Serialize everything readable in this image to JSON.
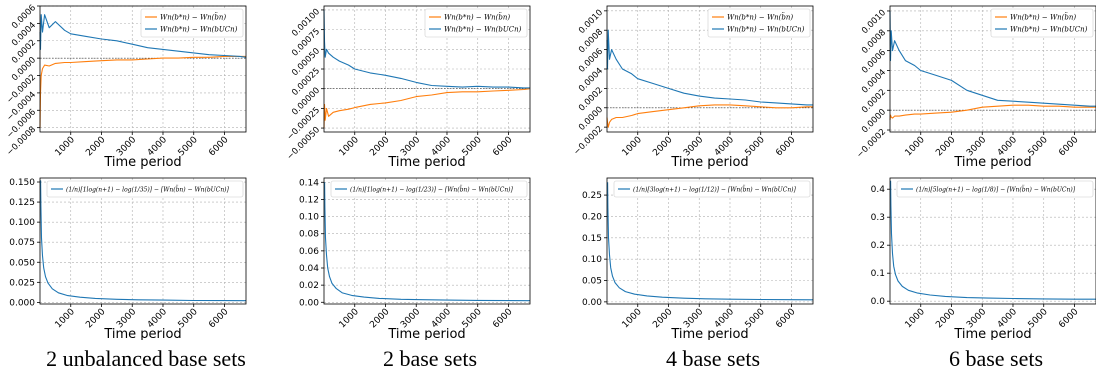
{
  "captions": [
    "2 unbalanced base sets",
    "2 base sets",
    "4 base sets",
    "6 base sets"
  ],
  "colors": {
    "orange": "#ff7f0e",
    "blue": "#1f77b4",
    "grid": "#b0b0b0"
  },
  "chart_data": [
    {
      "type": "line",
      "panel": "top",
      "set": 0,
      "xlabel": "Time period",
      "xlim": [
        0,
        6700
      ],
      "xticks": [
        1000,
        2000,
        3000,
        4000,
        5000,
        6000
      ],
      "ylim": [
        -0.00085,
        0.0006
      ],
      "yticks": [
        -0.0008,
        -0.0006,
        -0.0004,
        -0.0002,
        0.0,
        0.0002,
        0.0004,
        0.0006
      ],
      "ytick_labels": [
        "−0.0008",
        "−0.0006",
        "−0.0004",
        "−0.0002",
        "0.0000",
        "0.0002",
        "0.0004",
        "0.0006"
      ],
      "grid": true,
      "legend": "top-right",
      "hline": 0,
      "series": [
        {
          "name": "Wn(b*n) − Wn(b̈n)",
          "color": "orange",
          "x": [
            1,
            15,
            40,
            80,
            150,
            300,
            500,
            800,
            1000,
            1500,
            2000,
            2500,
            3000,
            3500,
            4000,
            4500,
            5000,
            5500,
            6000,
            6500,
            6700
          ],
          "y": [
            -0.0008,
            -0.0004,
            -0.0002,
            -0.00012,
            -8e-05,
            -9e-05,
            -6e-05,
            -5e-05,
            -5e-05,
            -4e-05,
            -3e-05,
            -2e-05,
            -2e-05,
            -1e-05,
            0.0,
            0.0,
            1e-05,
            1e-05,
            2e-05,
            2e-05,
            2e-05
          ]
        },
        {
          "name": "Wn(b*n) − Wn(bUCn)",
          "color": "blue",
          "x": [
            1,
            15,
            40,
            80,
            150,
            300,
            500,
            800,
            1000,
            1500,
            2000,
            2500,
            3000,
            3500,
            4000,
            4500,
            5000,
            5500,
            6000,
            6500,
            6700
          ],
          "y": [
            0.0003,
            0.0001,
            0.0005,
            0.0003,
            0.0005,
            0.00035,
            0.00042,
            0.00032,
            0.00028,
            0.00025,
            0.00022,
            0.0002,
            0.00016,
            0.00012,
            0.0001,
            8e-05,
            6e-05,
            4e-05,
            3e-05,
            2e-05,
            1e-05
          ]
        }
      ]
    },
    {
      "type": "line",
      "panel": "top",
      "set": 1,
      "xlabel": "Time period",
      "xlim": [
        0,
        6700
      ],
      "xticks": [
        1000,
        2000,
        3000,
        4000,
        5000,
        6000
      ],
      "ylim": [
        -0.00055,
        0.00105
      ],
      "yticks": [
        -0.0005,
        -0.00025,
        0.0,
        0.00025,
        0.0005,
        0.00075,
        0.001
      ],
      "ytick_labels": [
        "−0.00050",
        "−0.00025",
        "0.00000",
        "0.00025",
        "0.00050",
        "0.00075",
        "0.00100"
      ],
      "grid": true,
      "legend": "top-right",
      "hline": 0,
      "series": [
        {
          "name": "Wn(b*n) − Wn(b̈n)",
          "color": "orange",
          "x": [
            1,
            15,
            40,
            80,
            150,
            300,
            500,
            800,
            1000,
            1500,
            2000,
            2500,
            3000,
            3500,
            4000,
            4500,
            5000,
            5500,
            6000,
            6500,
            6700
          ],
          "y": [
            -0.0005,
            -0.0002,
            -0.0004,
            -0.00025,
            -0.00035,
            -0.0003,
            -0.00028,
            -0.00026,
            -0.00024,
            -0.0002,
            -0.00018,
            -0.00015,
            -0.0001,
            -8e-05,
            -5e-05,
            -4e-05,
            -4e-05,
            -3e-05,
            -2e-05,
            -1e-05,
            0.0
          ]
        },
        {
          "name": "Wn(b*n) − Wn(bUCn)",
          "color": "blue",
          "x": [
            1,
            15,
            40,
            80,
            150,
            300,
            500,
            800,
            1000,
            1500,
            2000,
            2500,
            3000,
            3500,
            4000,
            4500,
            5000,
            5500,
            6000,
            6500,
            6700
          ],
          "y": [
            0.001,
            0.0006,
            0.0004,
            0.0005,
            0.00045,
            0.0004,
            0.00035,
            0.0003,
            0.00025,
            0.0002,
            0.00017,
            0.00013,
            8e-05,
            4e-05,
            3e-05,
            2e-05,
            3e-05,
            2e-05,
            2e-05,
            1e-05,
            1e-05
          ]
        }
      ]
    },
    {
      "type": "line",
      "panel": "top",
      "set": 2,
      "xlabel": "Time period",
      "xlim": [
        0,
        6700
      ],
      "xticks": [
        1000,
        2000,
        3000,
        4000,
        5000,
        6000
      ],
      "ylim": [
        -0.00025,
        0.00105
      ],
      "yticks": [
        -0.0002,
        0.0,
        0.0002,
        0.0004,
        0.0006,
        0.0008,
        0.001
      ],
      "ytick_labels": [
        "−0.0002",
        "0.0000",
        "0.0002",
        "0.0004",
        "0.0006",
        "0.0008",
        "0.0010"
      ],
      "grid": true,
      "legend": "top-right",
      "hline": 0,
      "series": [
        {
          "name": "Wn(b*n) − Wn(b̈n)",
          "color": "orange",
          "x": [
            1,
            15,
            40,
            80,
            150,
            300,
            500,
            800,
            1000,
            1500,
            2000,
            2500,
            3000,
            3500,
            4000,
            4500,
            5000,
            5500,
            6000,
            6500,
            6700
          ],
          "y": [
            -0.0001,
            -0.00015,
            -0.0002,
            -0.00015,
            -0.00012,
            -0.0001,
            -0.0001,
            -8e-05,
            -6e-05,
            -4e-05,
            -2e-05,
            0.0,
            2e-05,
            3e-05,
            3e-05,
            2e-05,
            1e-05,
            0.0,
            0.0,
            1e-05,
            1e-05
          ]
        },
        {
          "name": "Wn(b*n) − Wn(bUCn)",
          "color": "blue",
          "x": [
            1,
            15,
            40,
            80,
            150,
            300,
            500,
            800,
            1000,
            1500,
            2000,
            2500,
            3000,
            3500,
            4000,
            4500,
            5000,
            5500,
            6000,
            6500,
            6700
          ],
          "y": [
            0.0007,
            0.0004,
            0.0008,
            0.0005,
            0.0006,
            0.0005,
            0.0004,
            0.00035,
            0.0003,
            0.00025,
            0.0002,
            0.00015,
            0.00012,
            0.0001,
            9e-05,
            8e-05,
            6e-05,
            5e-05,
            4e-05,
            3e-05,
            3e-05
          ]
        }
      ]
    },
    {
      "type": "line",
      "panel": "top",
      "set": 3,
      "xlabel": "Time period",
      "xlim": [
        0,
        6700
      ],
      "xticks": [
        1000,
        2000,
        3000,
        4000,
        5000,
        6000
      ],
      "ylim": [
        -0.00022,
        0.00105
      ],
      "yticks": [
        -0.0002,
        0.0,
        0.0002,
        0.0004,
        0.0006,
        0.0008,
        0.001
      ],
      "ytick_labels": [
        "−0.0002",
        "0.0000",
        "0.0002",
        "0.0004",
        "0.0006",
        "0.0008",
        "0.0010"
      ],
      "grid": true,
      "legend": "top-right",
      "hline": 0,
      "series": [
        {
          "name": "Wn(b*n) − Wn(b̈n)",
          "color": "orange",
          "x": [
            1,
            15,
            40,
            80,
            150,
            300,
            500,
            800,
            1000,
            1500,
            2000,
            2500,
            3000,
            3500,
            4000,
            4500,
            5000,
            5500,
            6000,
            6500,
            6700
          ],
          "y": [
            -0.0001,
            -5e-05,
            -7e-05,
            -8e-05,
            -6e-05,
            -6e-05,
            -5e-05,
            -4e-05,
            -4e-05,
            -3e-05,
            -2e-05,
            0.0,
            3e-05,
            4e-05,
            5e-05,
            5e-05,
            4e-05,
            4e-05,
            3e-05,
            3e-05,
            3e-05
          ]
        },
        {
          "name": "Wn(b*n) − Wn(bUCn)",
          "color": "blue",
          "x": [
            1,
            15,
            40,
            80,
            150,
            300,
            500,
            800,
            1000,
            1500,
            2000,
            2500,
            3000,
            3500,
            4000,
            4500,
            5000,
            5500,
            6000,
            6500,
            6700
          ],
          "y": [
            0.001,
            0.0005,
            0.0008,
            0.0006,
            0.0007,
            0.0006,
            0.0005,
            0.00045,
            0.0004,
            0.00035,
            0.0003,
            0.0002,
            0.00015,
            0.0001,
            9e-05,
            8e-05,
            7e-05,
            6e-05,
            5e-05,
            4e-05,
            4e-05
          ]
        }
      ]
    },
    {
      "type": "line",
      "panel": "bottom",
      "set": 0,
      "xlabel": "Time period",
      "xlim": [
        0,
        6700
      ],
      "xticks": [
        1000,
        2000,
        3000,
        4000,
        5000,
        6000
      ],
      "ylim": [
        -0.002,
        0.155
      ],
      "yticks": [
        0.0,
        0.025,
        0.05,
        0.075,
        0.1,
        0.125,
        0.15
      ],
      "ytick_labels": [
        "0.000",
        "0.025",
        "0.050",
        "0.075",
        "0.100",
        "0.125",
        "0.150"
      ],
      "grid": true,
      "legend": "top-right",
      "series": [
        {
          "name": "(1/n)[1log(n+1) − log(1/35)] − [Wn(b̈n) − Wn(bUCn)]",
          "color": "blue",
          "x": [
            20,
            30,
            50,
            80,
            120,
            180,
            260,
            400,
            600,
            900,
            1300,
            1800,
            2500,
            3200,
            4000,
            5000,
            6000,
            6700
          ],
          "y": [
            0.152,
            0.12,
            0.08,
            0.058,
            0.043,
            0.032,
            0.024,
            0.017,
            0.012,
            0.0085,
            0.0065,
            0.005,
            0.0038,
            0.0032,
            0.0028,
            0.0024,
            0.0022,
            0.0021
          ]
        }
      ]
    },
    {
      "type": "line",
      "panel": "bottom",
      "set": 1,
      "xlabel": "Time period",
      "xlim": [
        0,
        6700
      ],
      "xticks": [
        1000,
        2000,
        3000,
        4000,
        5000,
        6000
      ],
      "ylim": [
        -0.002,
        0.145
      ],
      "yticks": [
        0.0,
        0.02,
        0.04,
        0.06,
        0.08,
        0.1,
        0.12,
        0.14
      ],
      "ytick_labels": [
        "0.00",
        "0.02",
        "0.04",
        "0.06",
        "0.08",
        "0.10",
        "0.12",
        "0.14"
      ],
      "grid": true,
      "legend": "top-right",
      "series": [
        {
          "name": "(1/n)[1log(n+1) − log(1/23)] − [Wn(b̈n) − Wn(bUCn)]",
          "color": "blue",
          "x": [
            20,
            30,
            50,
            80,
            120,
            180,
            260,
            400,
            600,
            900,
            1300,
            1800,
            2500,
            3200,
            4000,
            5000,
            6000,
            6700
          ],
          "y": [
            0.14,
            0.11,
            0.075,
            0.055,
            0.04,
            0.03,
            0.022,
            0.016,
            0.011,
            0.008,
            0.006,
            0.0045,
            0.0035,
            0.003,
            0.0026,
            0.0022,
            0.002,
            0.0019
          ]
        }
      ]
    },
    {
      "type": "line",
      "panel": "bottom",
      "set": 2,
      "xlabel": "Time period",
      "xlim": [
        0,
        6700
      ],
      "xticks": [
        1000,
        2000,
        3000,
        4000,
        5000,
        6000
      ],
      "ylim": [
        -0.005,
        0.29
      ],
      "yticks": [
        0.0,
        0.05,
        0.1,
        0.15,
        0.2,
        0.25
      ],
      "ytick_labels": [
        "0.00",
        "0.05",
        "0.10",
        "0.15",
        "0.20",
        "0.25"
      ],
      "grid": true,
      "legend": "top-right",
      "series": [
        {
          "name": "(1/n)[3log(n+1) − log(1/12)] − [Wn(b̈n) − Wn(bUCn)]",
          "color": "blue",
          "x": [
            20,
            30,
            50,
            80,
            120,
            180,
            260,
            400,
            600,
            900,
            1300,
            1800,
            2500,
            3200,
            4000,
            5000,
            6000,
            6700
          ],
          "y": [
            0.28,
            0.22,
            0.15,
            0.11,
            0.08,
            0.06,
            0.045,
            0.033,
            0.024,
            0.018,
            0.014,
            0.011,
            0.0085,
            0.0072,
            0.0062,
            0.0055,
            0.005,
            0.0048
          ]
        }
      ]
    },
    {
      "type": "line",
      "panel": "bottom",
      "set": 3,
      "xlabel": "Time period",
      "xlim": [
        0,
        6700
      ],
      "xticks": [
        1000,
        2000,
        3000,
        4000,
        5000,
        6000
      ],
      "ylim": [
        -0.01,
        0.44
      ],
      "yticks": [
        0.0,
        0.1,
        0.2,
        0.3,
        0.4
      ],
      "ytick_labels": [
        "0.0",
        "0.1",
        "0.2",
        "0.3",
        "0.4"
      ],
      "grid": true,
      "legend": "top-right",
      "series": [
        {
          "name": "(1/n)[5log(n+1) − log(1/8)] − [Wn(b̈n) − Wn(bUCn)]",
          "color": "blue",
          "x": [
            20,
            30,
            50,
            80,
            120,
            180,
            260,
            400,
            600,
            900,
            1300,
            1800,
            2500,
            3200,
            4000,
            5000,
            6000,
            6700
          ],
          "y": [
            0.43,
            0.34,
            0.24,
            0.17,
            0.125,
            0.095,
            0.072,
            0.053,
            0.039,
            0.029,
            0.022,
            0.017,
            0.013,
            0.011,
            0.0095,
            0.0082,
            0.0073,
            0.007
          ]
        }
      ]
    }
  ]
}
